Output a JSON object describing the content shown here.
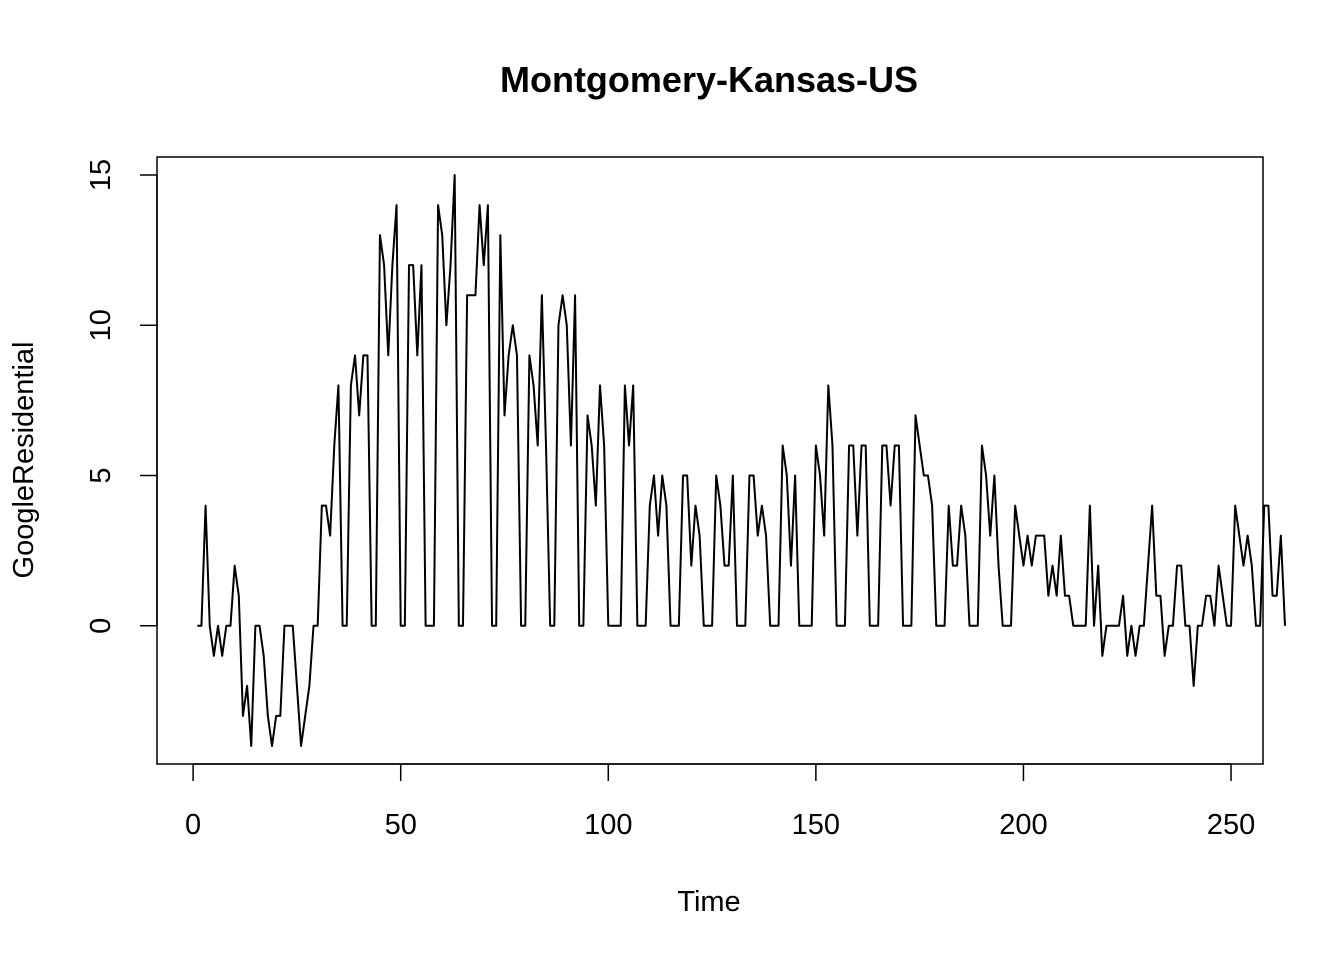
{
  "chart_data": {
    "type": "line",
    "title": "Montgomery-Kansas-US",
    "xlabel": "Time",
    "ylabel": "GoogleResidential",
    "xlim": [
      -8.7,
      257.7
    ],
    "ylim": [
      -4.6,
      15.6
    ],
    "x_ticks": [
      0,
      50,
      100,
      150,
      200,
      250
    ],
    "y_ticks": [
      0,
      5,
      10,
      15
    ],
    "x_tick_labels": [
      "0",
      "50",
      "100",
      "150",
      "200",
      "250"
    ],
    "y_tick_labels": [
      "0",
      "5",
      "10",
      "15"
    ],
    "grid": false,
    "legend": "none",
    "line_color": "#000000",
    "series": [
      {
        "x_start": 1,
        "values": [
          0,
          0,
          4,
          0,
          -1,
          0,
          -1,
          0,
          0,
          2,
          1,
          -3,
          -2,
          -4,
          0,
          0,
          -1,
          -3,
          -4,
          -3,
          -3,
          0,
          0,
          0,
          -2,
          -4,
          -3,
          -2,
          0,
          0,
          4,
          4,
          3,
          6,
          8,
          0,
          0,
          8,
          9,
          7,
          9,
          9,
          0,
          0,
          13,
          12,
          9,
          12,
          14,
          0,
          0,
          12,
          12,
          9,
          12,
          0,
          0,
          0,
          14,
          13,
          10,
          12,
          15,
          0,
          0,
          11,
          11,
          11,
          14,
          12,
          14,
          0,
          0,
          13,
          7,
          9,
          10,
          9,
          0,
          0,
          9,
          8,
          6,
          11,
          6,
          0,
          0,
          10,
          11,
          10,
          6,
          11,
          0,
          0,
          7,
          6,
          4,
          8,
          6,
          0,
          0,
          0,
          0,
          8,
          6,
          8,
          0,
          0,
          0,
          4,
          5,
          3,
          5,
          4,
          0,
          0,
          0,
          5,
          5,
          2,
          4,
          3,
          0,
          0,
          0,
          5,
          4,
          2,
          2,
          5,
          0,
          0,
          0,
          5,
          5,
          3,
          4,
          3,
          0,
          0,
          0,
          6,
          5,
          2,
          5,
          0,
          0,
          0,
          0,
          6,
          5,
          3,
          8,
          6,
          0,
          0,
          0,
          6,
          6,
          3,
          6,
          6,
          0,
          0,
          0,
          6,
          6,
          4,
          6,
          6,
          0,
          0,
          0,
          7,
          6,
          5,
          5,
          4,
          0,
          0,
          0,
          4,
          2,
          2,
          4,
          3,
          0,
          0,
          0,
          6,
          5,
          3,
          5,
          2,
          0,
          0,
          0,
          4,
          3,
          2,
          3,
          2,
          3,
          3,
          3,
          1,
          2,
          1,
          3,
          1,
          1,
          0,
          0,
          0,
          0,
          4,
          0,
          2,
          -1,
          0,
          0,
          0,
          0,
          1,
          -1,
          0,
          -1,
          0,
          0,
          2,
          4,
          1,
          1,
          -1,
          0,
          0,
          2,
          2,
          0,
          0,
          -2,
          0,
          0,
          1,
          1,
          0,
          2,
          1,
          0,
          0,
          4,
          3,
          2,
          3,
          2,
          0,
          0,
          4,
          4,
          1,
          1,
          3,
          0
        ]
      }
    ]
  }
}
